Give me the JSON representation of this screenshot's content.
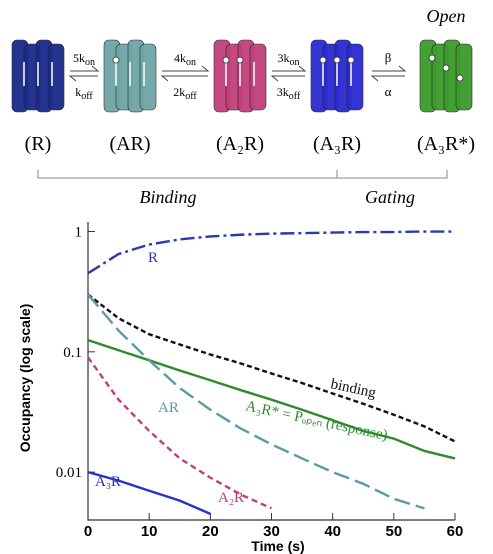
{
  "scheme": {
    "states": [
      "(R)",
      "(AR)",
      "(A₂R)",
      "(A₃R)",
      "(A₃R*)"
    ],
    "open_label": "Open",
    "rates": [
      {
        "forward": {
          "k": "5k",
          "sub": "on"
        },
        "backward": {
          "k": "k",
          "sub": "off"
        }
      },
      {
        "forward": {
          "k": "4k",
          "sub": "on"
        },
        "backward": {
          "k": "2k",
          "sub": "off"
        }
      },
      {
        "forward": {
          "k": "3k",
          "sub": "on"
        },
        "backward": {
          "k": "3k",
          "sub": "off"
        }
      }
    ],
    "gating": {
      "forward": "β",
      "backward": "α"
    },
    "groups": [
      "Binding",
      "Gating"
    ]
  },
  "chart_data": {
    "type": "line",
    "x_label": "Time (s)",
    "y_label": "Occupancy (log scale)",
    "log_y": true,
    "x": [
      0,
      5,
      10,
      15,
      20,
      25,
      30,
      35,
      40,
      45,
      50,
      55,
      60
    ],
    "xlim": [
      0,
      60
    ],
    "xticks": [
      0,
      10,
      20,
      30,
      40,
      50,
      60
    ],
    "ylim": [
      0.004,
      1.2
    ],
    "yticks": [
      0.01,
      0.1,
      1
    ],
    "series": [
      {
        "name": "R",
        "color": "#2a3aa8",
        "dash": "14 4 3 4",
        "values": [
          0.45,
          0.65,
          0.78,
          0.86,
          0.91,
          0.94,
          0.96,
          0.97,
          0.98,
          0.99,
          0.99,
          1,
          1
        ]
      },
      {
        "name": "binding",
        "color": "#111111",
        "dash": "5 3",
        "values": [
          0.3,
          0.19,
          0.14,
          0.115,
          0.095,
          0.08,
          0.066,
          0.055,
          0.045,
          0.037,
          0.03,
          0.024,
          0.018
        ]
      },
      {
        "name": "A₃R* = Pₒₚₑₙ (response)",
        "color": "#2e8b2e",
        "dash": "",
        "values": [
          0.125,
          0.103,
          0.085,
          0.07,
          0.058,
          0.048,
          0.04,
          0.033,
          0.027,
          0.022,
          0.019,
          0.015,
          0.013
        ]
      },
      {
        "name": "AR",
        "color": "#5b9ba2",
        "dash": "16 6",
        "values": [
          0.3,
          0.15,
          0.085,
          0.05,
          0.033,
          0.023,
          0.017,
          0.013,
          0.01,
          0.008,
          0.006,
          0.005,
          null
        ]
      },
      {
        "name": "A₂R",
        "color": "#c0407a",
        "dash": "6 4",
        "values": [
          0.09,
          0.04,
          0.022,
          0.013,
          0.009,
          0.0065,
          0.005,
          null,
          null,
          null,
          null,
          null,
          null
        ]
      },
      {
        "name": "A₃R",
        "color": "#2233cc",
        "dash": "",
        "values": [
          0.01,
          0.0085,
          0.007,
          0.0058,
          0.0045,
          null,
          null,
          null,
          null,
          null,
          null,
          null,
          null
        ]
      }
    ]
  }
}
